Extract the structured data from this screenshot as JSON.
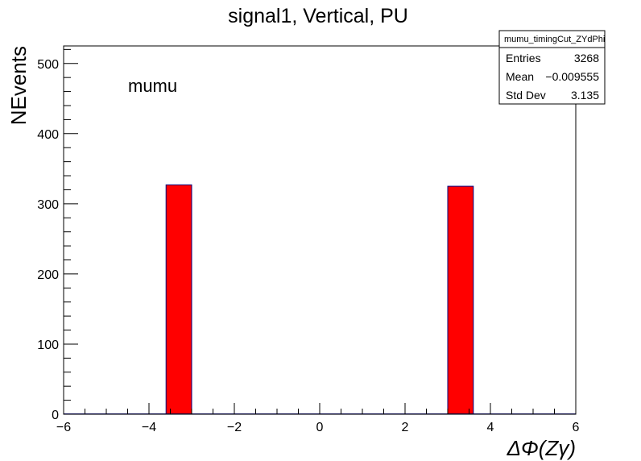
{
  "chart_data": {
    "type": "bar",
    "title": "signal1, Vertical, PU",
    "xlabel": "ΔΦ(Zγ)",
    "ylabel": "NEvents",
    "xlim": [
      -6,
      6
    ],
    "ylim": [
      0,
      525
    ],
    "x_ticks": [
      -6,
      -4,
      -2,
      0,
      2,
      4,
      6
    ],
    "x_tick_labels": [
      "−6",
      "−4",
      "−2",
      "0",
      "2",
      "4",
      "6"
    ],
    "y_ticks": [
      0,
      100,
      200,
      300,
      400,
      500
    ],
    "y_tick_labels": [
      "0",
      "100",
      "200",
      "300",
      "400",
      "500"
    ],
    "bins": [
      {
        "x_low": -3.6,
        "x_high": -3.0,
        "value": 327
      },
      {
        "x_low": 3.0,
        "x_high": 3.6,
        "value": 325
      }
    ],
    "fill_color": "#ff0000",
    "line_color": "#00007f",
    "annotation": "mumu",
    "stats_box": {
      "title": "mumu_timingCut_ZYdPhi",
      "rows": [
        {
          "label": "Entries",
          "value": "3268"
        },
        {
          "label": "Mean",
          "value": "−0.009555"
        },
        {
          "label": "Std Dev",
          "value": "3.135"
        }
      ]
    }
  }
}
